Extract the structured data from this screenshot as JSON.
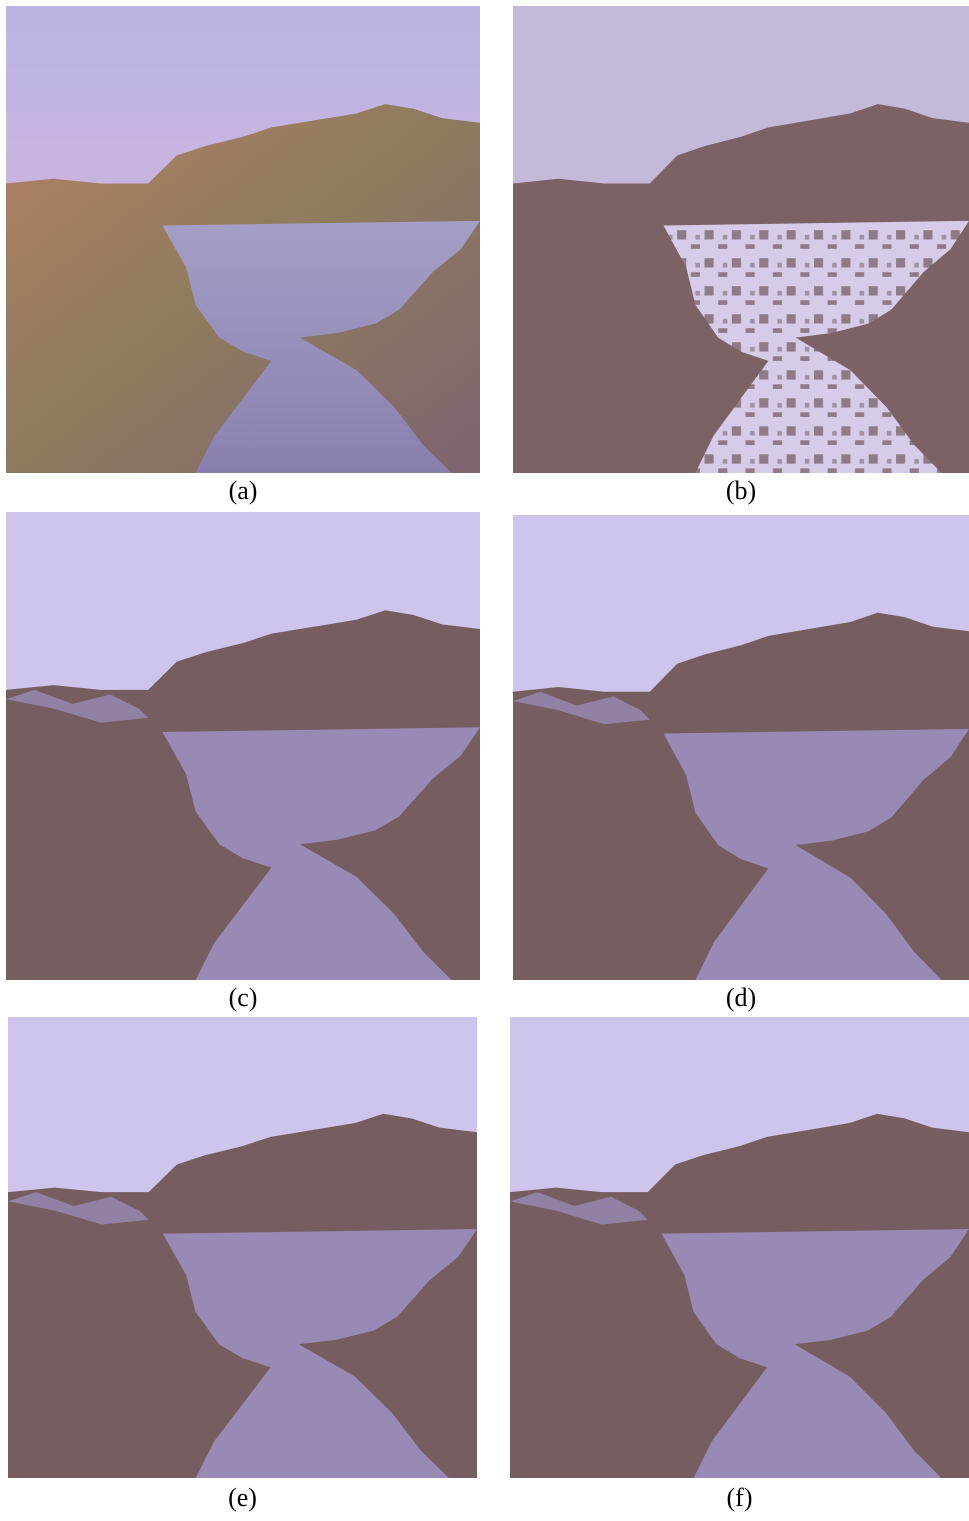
{
  "figure": {
    "panels": [
      {
        "caption": "(a)"
      },
      {
        "caption": "(b)"
      },
      {
        "caption": "(c)"
      },
      {
        "caption": "(d)"
      },
      {
        "caption": "(e)"
      },
      {
        "caption": "(f)"
      }
    ]
  }
}
